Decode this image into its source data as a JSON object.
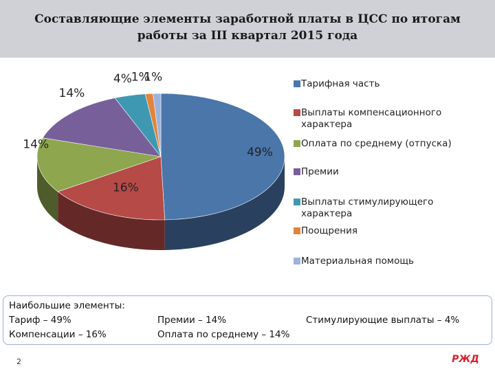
{
  "title": "Составляющие элементы заработной платы в ЦСС по итогам работы за III квартал 2015 года",
  "chart_data": {
    "type": "pie",
    "style": "3d",
    "legend_position": "right",
    "data_label_suffix": "%",
    "slices": [
      {
        "name": "Тарифная часть",
        "value": 49,
        "color": "#4a76aa"
      },
      {
        "name": "Выплаты компенсационного характера",
        "value": 16,
        "color": "#b54a47"
      },
      {
        "name": "Оплата по среднему (отпуска)",
        "value": 14,
        "color": "#8ea64e"
      },
      {
        "name": "Премии",
        "value": 14,
        "color": "#77609a"
      },
      {
        "name": "Выплаты стимулирующего характера",
        "value": 4,
        "color": "#3f98b2"
      },
      {
        "name": "Поощрения",
        "value": 1,
        "color": "#e0853b"
      },
      {
        "name": "Материальная помощь",
        "value": 1,
        "color": "#9cb3dd"
      }
    ]
  },
  "summary": {
    "heading": "Наибольшие элементы:",
    "col1": [
      "Тариф – 49%",
      "Компенсации – 16%"
    ],
    "col2": [
      "Премии – 14%",
      "Оплата по среднему – 14%"
    ],
    "col3": [
      "Стимулирующие выплаты – 4%"
    ]
  },
  "page_number": "2"
}
